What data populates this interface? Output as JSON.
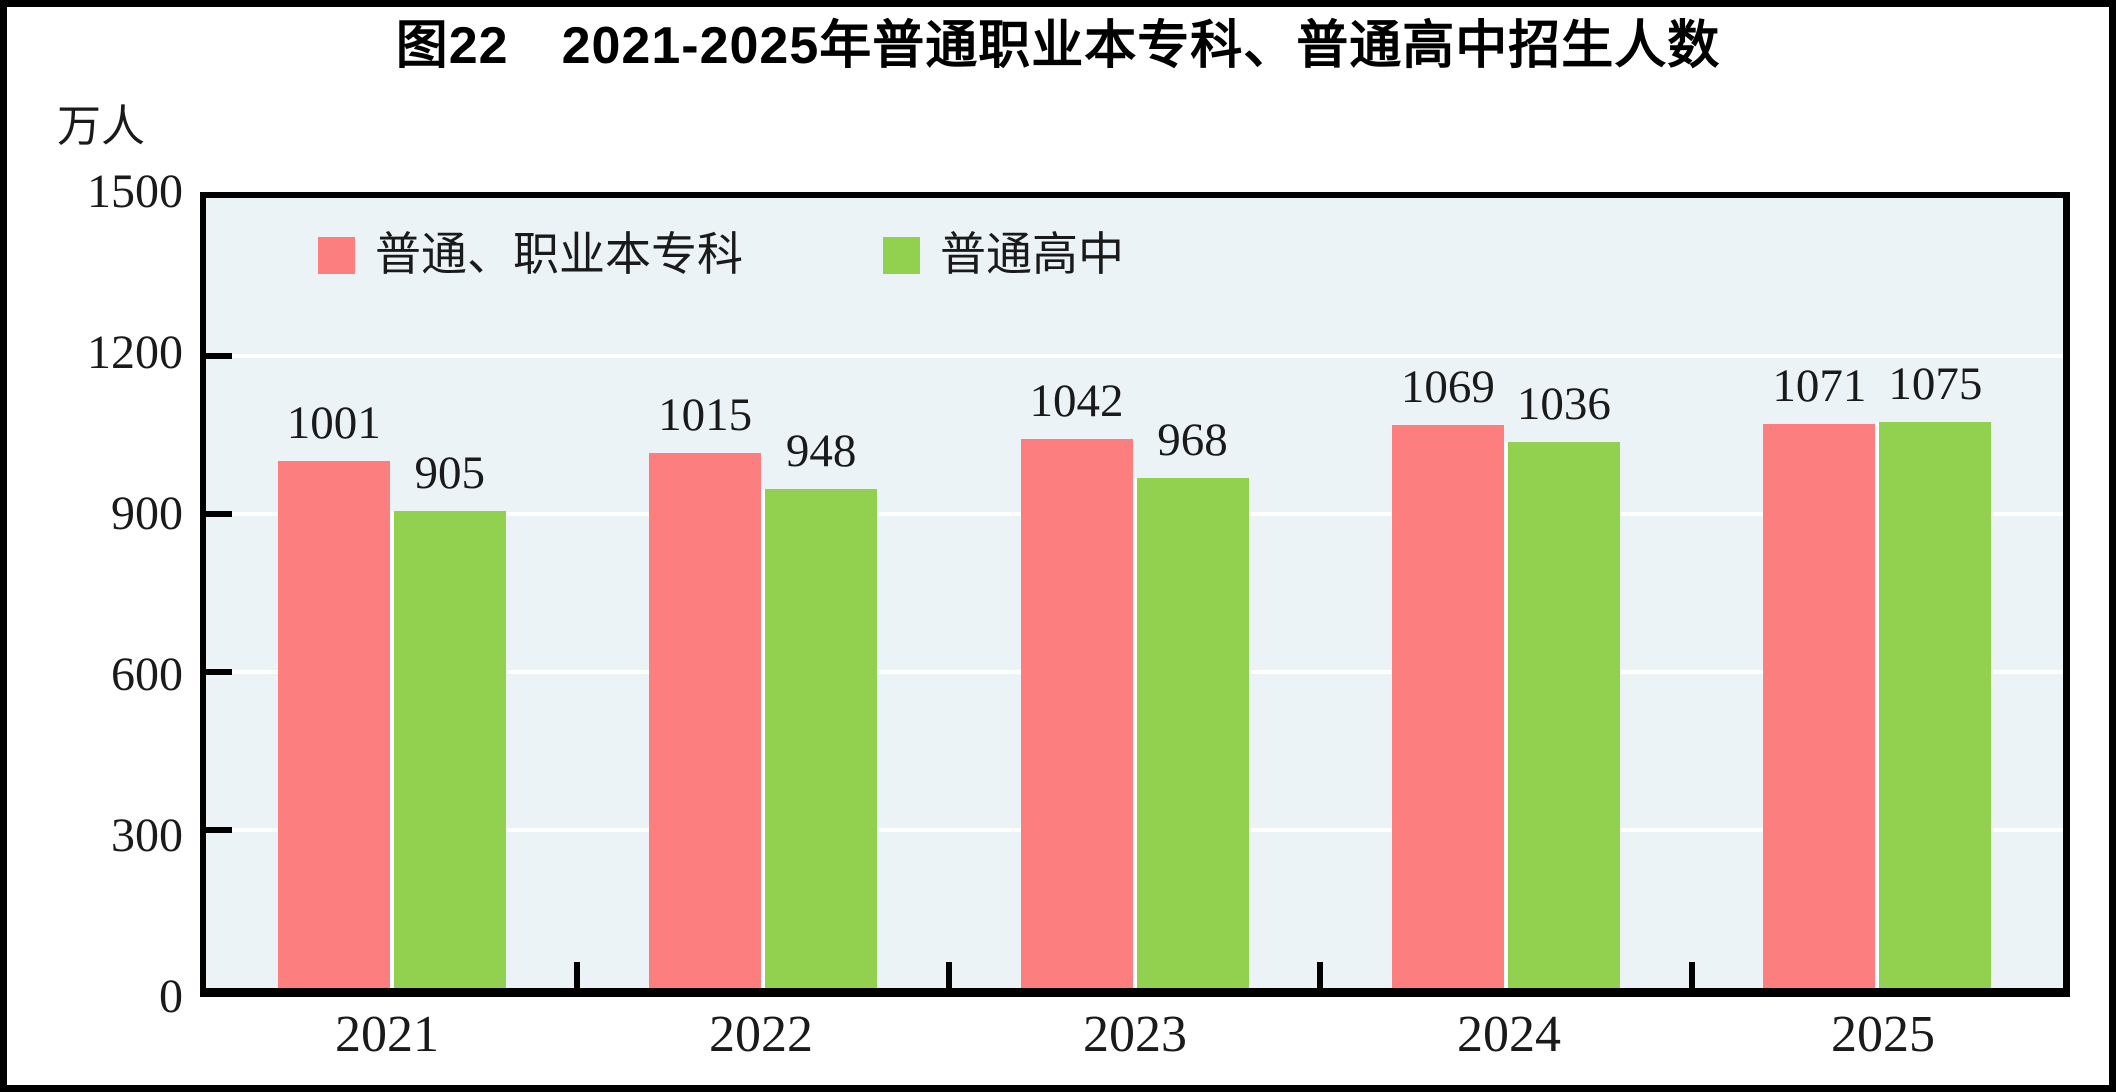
{
  "title": "图22　2021-2025年普通职业本专科、普通高中招生人数",
  "chart_data": {
    "type": "bar",
    "title": "图22　2021-2025年普通职业本专科、普通高中招生人数",
    "unit_label": "万人",
    "xlabel": "",
    "ylabel": "万人",
    "categories": [
      "2021",
      "2022",
      "2023",
      "2024",
      "2025"
    ],
    "series": [
      {
        "name": "普通、职业本专科",
        "color": "#FD7E7E",
        "values": [
          1001,
          1015,
          1042,
          1069,
          1071
        ]
      },
      {
        "name": "普通高中",
        "color": "#92D050",
        "values": [
          905,
          948,
          968,
          1036,
          1075
        ]
      }
    ],
    "ylim": [
      0,
      1500
    ],
    "yticks": [
      0,
      300,
      600,
      900,
      1200,
      1500
    ],
    "grid": true,
    "gridline_color": "#FFFFFF",
    "plot_background": "#ECF3F7",
    "axis_color": "#000000",
    "legend_position": "top-left"
  }
}
